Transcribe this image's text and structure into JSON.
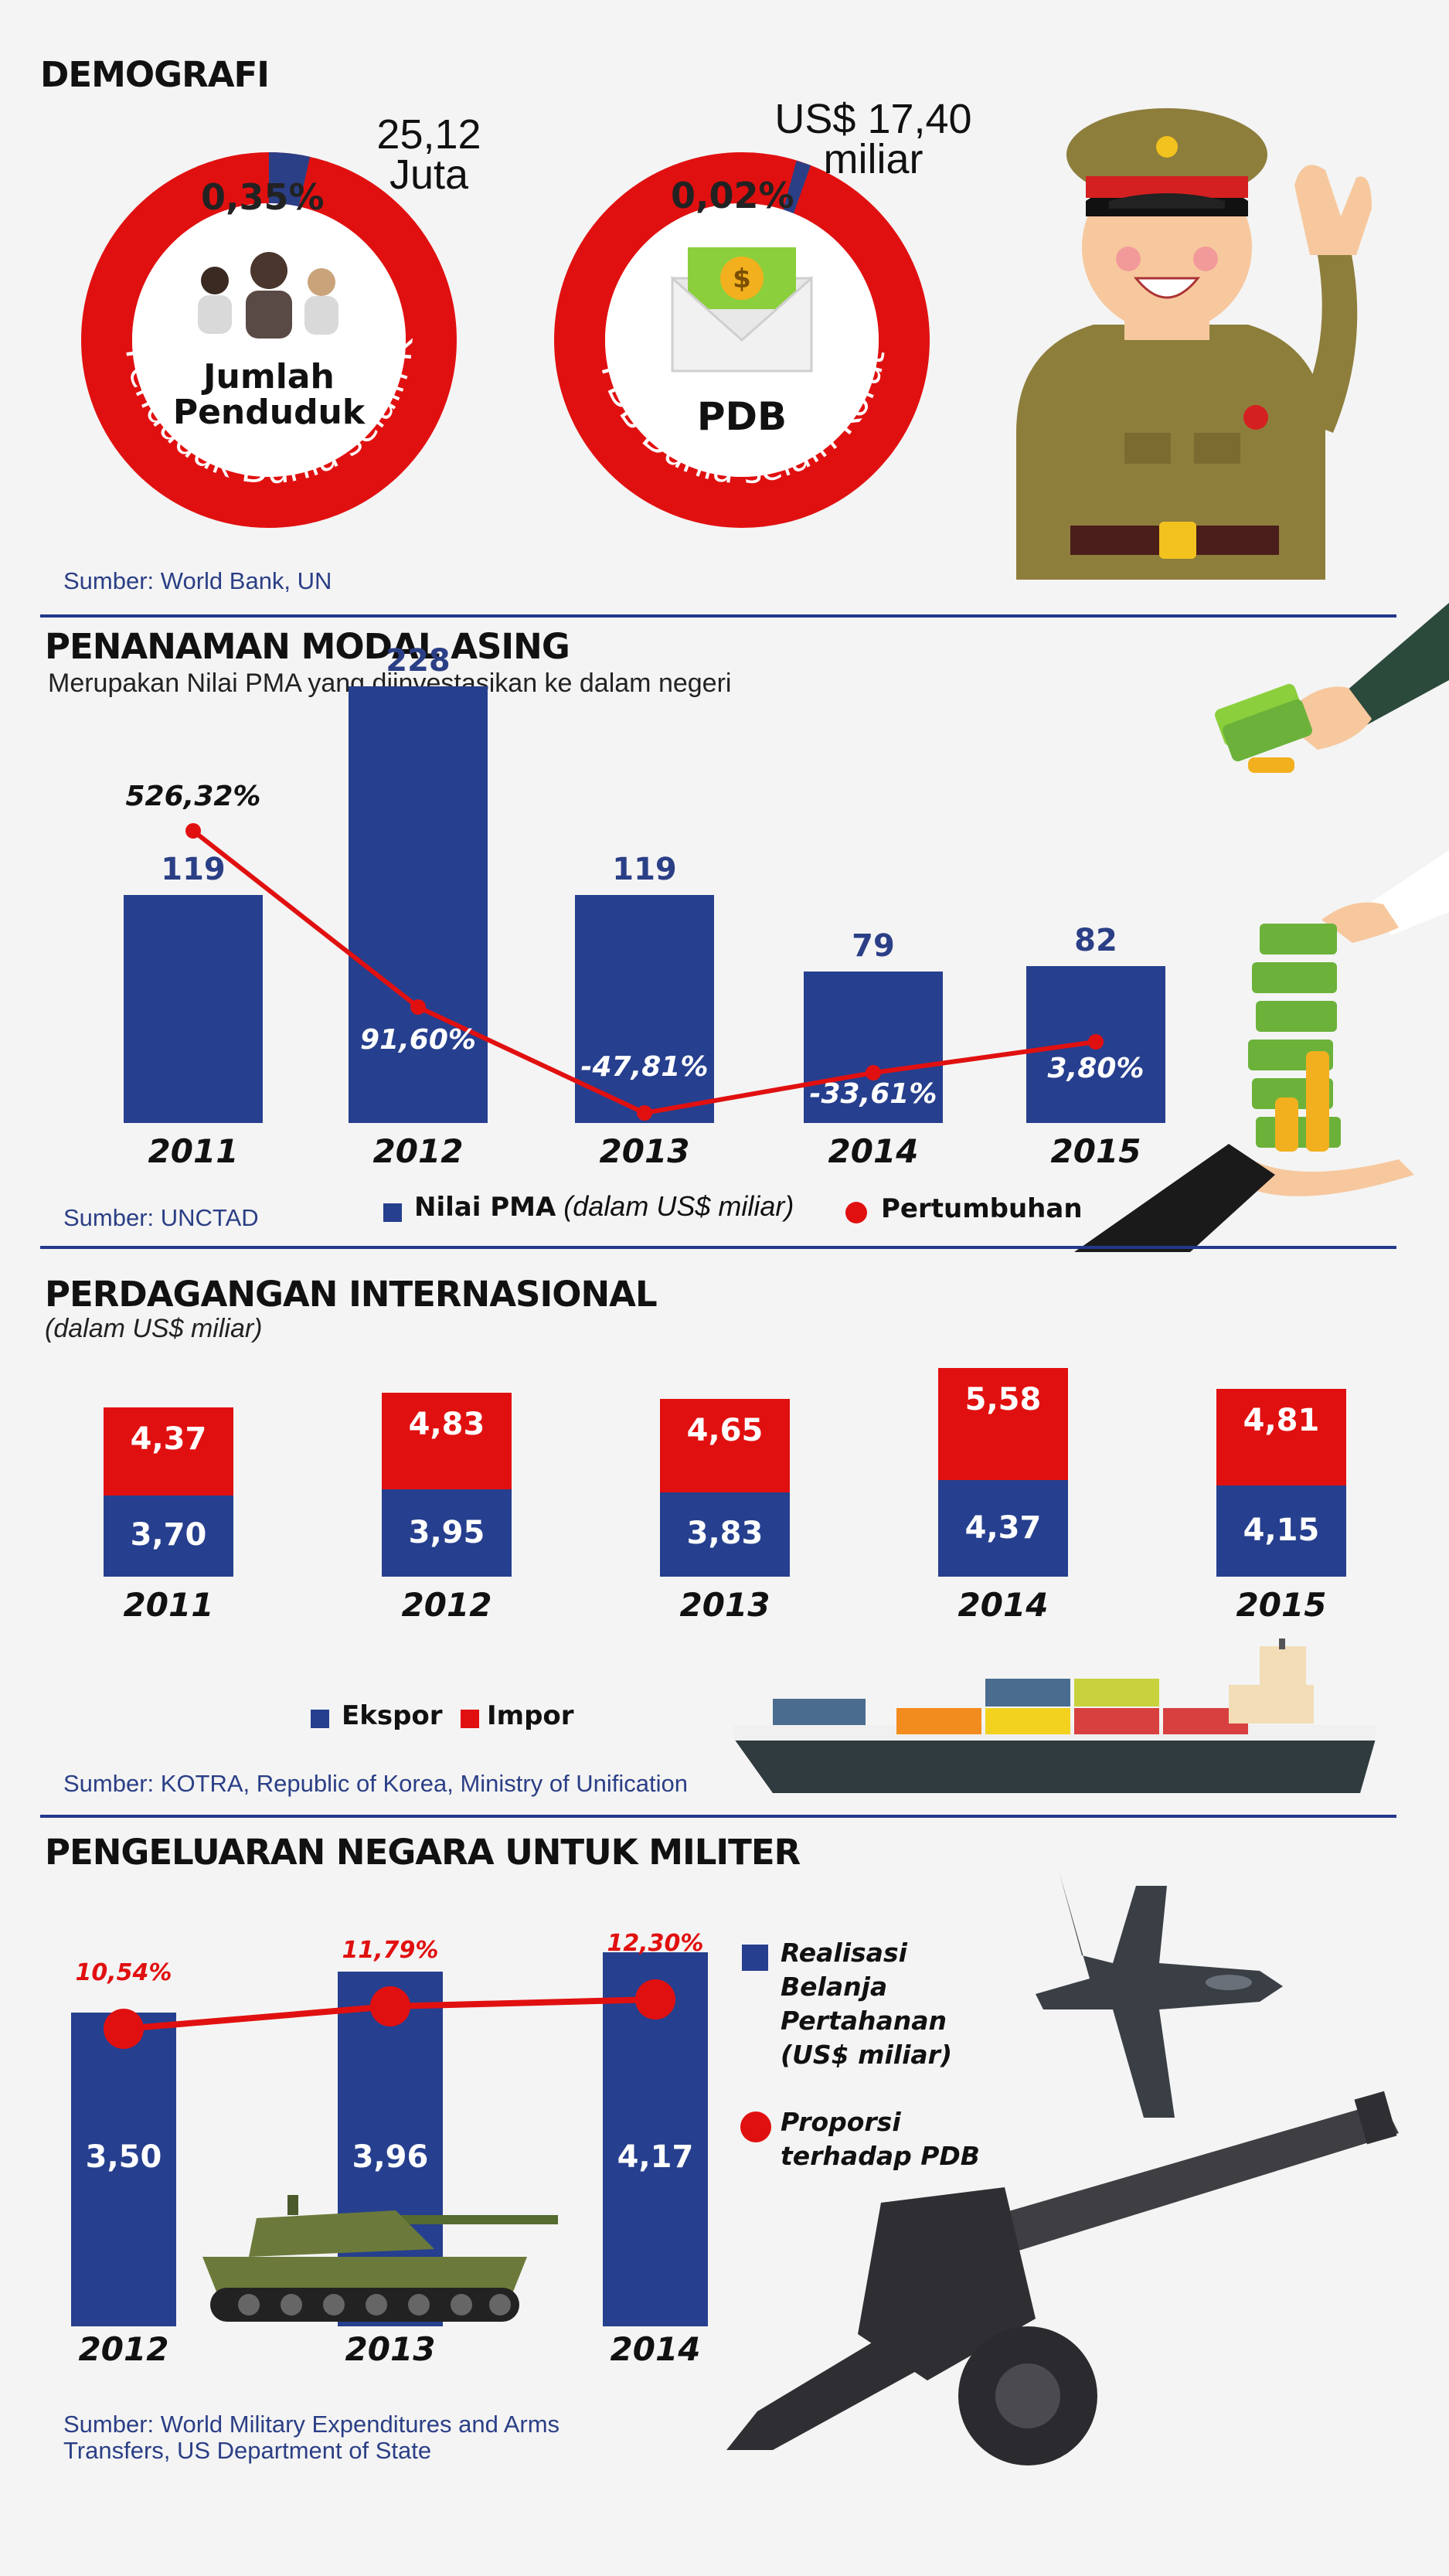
{
  "demografi": {
    "title": "DEMOGRAFI",
    "pop": {
      "pct": "0,35%",
      "value": "25,12",
      "unit": "Juta",
      "center1": "Jumlah",
      "center2": "Penduduk",
      "ring": "Penduduk Dunia selain Korut",
      "share": 0.0035
    },
    "pdb": {
      "pct": "0,02%",
      "value": "US$ 17,40",
      "unit": "miliar",
      "center": "PDB",
      "ring": "PDB Dunia selain Korut",
      "share": 0.0002
    },
    "source": "Sumber: World Bank, UN"
  },
  "pma": {
    "title": "PENANAMAN MODAL ASING",
    "subtitle": "Merupakan Nilai PMA yang diinvestasikan ke dalam negeri",
    "source": "Sumber: UNCTAD",
    "legend_bar": "Nilai PMA",
    "legend_bar_unit": "(dalam US$ miliar)",
    "legend_line": "Pertumbuhan"
  },
  "trade": {
    "title": "PERDAGANGAN INTERNASIONAL",
    "subtitle": "(dalam US$ miliar)",
    "legend_export": "Ekspor",
    "legend_import": "Impor",
    "source": "Sumber: KOTRA, Republic of Korea, Ministry of Unification"
  },
  "military": {
    "title": "PENGELUARAN NEGARA UNTUK MILITER",
    "legend_bar_1": "Realisasi",
    "legend_bar_2": "Belanja",
    "legend_bar_3": "Pertahanan",
    "legend_bar_4": "(US$ miliar)",
    "legend_line_1": "Proporsi",
    "legend_line_2": "terhadap PDB",
    "source_1": "Sumber: World Military Expenditures and Arms",
    "source_2": "Transfers, US Department of State"
  },
  "colors": {
    "blue": "#263f8e",
    "red": "#e11010",
    "text": "#2b3f86"
  },
  "chart_data": [
    {
      "type": "bar",
      "title": "PENANAMAN MODAL ASING",
      "categories": [
        "2011",
        "2012",
        "2013",
        "2014",
        "2015"
      ],
      "series": [
        {
          "name": "Nilai PMA",
          "values": [
            119,
            228,
            119,
            79,
            82
          ],
          "labels": [
            "119",
            "228",
            "119",
            "79",
            "82"
          ]
        },
        {
          "name": "Pertumbuhan",
          "values": [
            526.32,
            91.6,
            -47.81,
            -33.61,
            3.8
          ],
          "labels": [
            "526,32%",
            "91,60%",
            "-47,81%",
            "-33,61%",
            "3,80%"
          ]
        }
      ]
    },
    {
      "type": "bar",
      "title": "PERDAGANGAN INTERNASIONAL",
      "categories": [
        "2011",
        "2012",
        "2013",
        "2014",
        "2015"
      ],
      "series": [
        {
          "name": "Ekspor",
          "values": [
            3.7,
            3.95,
            3.83,
            4.37,
            4.15
          ],
          "labels": [
            "3,70",
            "3,95",
            "3,83",
            "4,37",
            "4,15"
          ]
        },
        {
          "name": "Impor",
          "values": [
            4.37,
            4.83,
            4.65,
            5.58,
            4.81
          ],
          "labels": [
            "4,37",
            "4,83",
            "4,65",
            "5,58",
            "4,81"
          ]
        }
      ]
    },
    {
      "type": "bar",
      "title": "PENGELUARAN NEGARA UNTUK MILITER",
      "categories": [
        "2012",
        "2013",
        "2014"
      ],
      "series": [
        {
          "name": "Realisasi Belanja Pertahanan (US$ miliar)",
          "values": [
            3.5,
            3.96,
            4.17
          ],
          "labels": [
            "3,50",
            "3,96",
            "4,17"
          ]
        },
        {
          "name": "Proporsi terhadap PDB",
          "values": [
            10.54,
            11.79,
            12.3
          ],
          "labels": [
            "10,54%",
            "11,79%",
            "12,30%"
          ]
        }
      ]
    }
  ]
}
